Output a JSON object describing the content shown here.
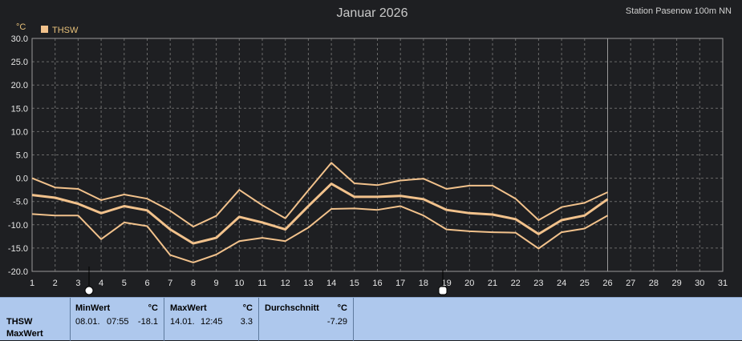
{
  "header": {
    "title": "Januar 2026",
    "station": "Station Pasenow 100m NN"
  },
  "chart_data": {
    "type": "line",
    "unit": "°C",
    "ylim": [
      -20,
      30
    ],
    "yticks": [
      "30.0",
      "25.0",
      "20.0",
      "15.0",
      "10.0",
      "5.0",
      "0.0",
      "-5.0",
      "-10.0",
      "-15.0",
      "-20.0"
    ],
    "xticks": [
      "1",
      "2",
      "3",
      "4",
      "5",
      "6",
      "7",
      "8",
      "9",
      "10",
      "11",
      "12",
      "13",
      "14",
      "15",
      "16",
      "17",
      "18",
      "19",
      "20",
      "21",
      "22",
      "23",
      "24",
      "25",
      "26",
      "27",
      "28",
      "29",
      "30",
      "31"
    ],
    "grid": true,
    "legend": "top-left",
    "legend_label": "THSW",
    "marker_day": 26,
    "series_color": "#f2c28c",
    "series": [
      {
        "values": [
          0.0,
          -2.0,
          -2.3,
          -4.7,
          -3.5,
          -4.4,
          -7.0,
          -10.4,
          -8.1,
          -2.5,
          -5.8,
          -8.6,
          -2.6,
          3.3,
          -1.1,
          -1.5,
          -0.5,
          -0.1,
          -2.3,
          -1.6,
          -1.6,
          -4.4,
          -9.0,
          -6.2,
          -5.3,
          -3.0
        ]
      },
      {
        "values": [
          -3.6,
          -4.2,
          -5.5,
          -7.5,
          -6.0,
          -6.9,
          -11.0,
          -14.0,
          -12.8,
          -8.3,
          -9.5,
          -11.0,
          -6.0,
          -1.2,
          -4.0,
          -4.0,
          -3.8,
          -4.5,
          -6.8,
          -7.5,
          -7.8,
          -8.8,
          -12.0,
          -9.0,
          -8.0,
          -4.5
        ]
      },
      {
        "values": [
          -7.7,
          -8.0,
          -8.0,
          -13.1,
          -9.5,
          -10.3,
          -16.5,
          -18.1,
          -16.4,
          -13.5,
          -12.8,
          -13.5,
          -10.6,
          -6.6,
          -6.5,
          -6.8,
          -6.0,
          -8.0,
          -11.0,
          -11.4,
          -11.6,
          -11.7,
          -15.1,
          -11.6,
          -10.8,
          -8.0
        ]
      }
    ]
  },
  "footer": {
    "row_label_1": "THSW",
    "row_label_2": "MaxWert",
    "min": {
      "header": "MinWert",
      "unit": "°C",
      "date": "08.01.",
      "time": "07:55",
      "value": "-18.1"
    },
    "max": {
      "header": "MaxWert",
      "unit": "°C",
      "date": "14.01.",
      "time": "12:45",
      "value": "3.3"
    },
    "avg": {
      "header": "Durchschnitt",
      "unit": "°C",
      "value": "-7.29"
    }
  }
}
